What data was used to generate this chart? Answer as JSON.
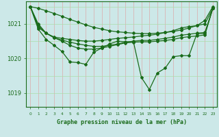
{
  "background_color": "#cce8e8",
  "line_color": "#1a6b1a",
  "grid_color_v": "#ddaaaa",
  "grid_color_h": "#aaddaa",
  "xlabel": "Graphe pression niveau de la mer (hPa)",
  "yticks": [
    1019,
    1020,
    1021
  ],
  "ylim": [
    1018.6,
    1021.65
  ],
  "xlim": [
    -0.5,
    23.5
  ],
  "series": [
    [
      1021.5,
      1021.0,
      1020.73,
      1020.62,
      1020.58,
      1020.55,
      1020.52,
      1020.5,
      1020.5,
      1020.52,
      1020.55,
      1020.58,
      1020.6,
      1020.62,
      1020.65,
      1020.67,
      1020.7,
      1020.75,
      1020.8,
      1020.88,
      1020.92,
      1020.95,
      1021.0,
      1021.45
    ],
    [
      1021.5,
      1020.95,
      1020.73,
      1020.6,
      1020.53,
      1020.47,
      1020.42,
      1020.38,
      1020.35,
      1020.35,
      1020.38,
      1020.42,
      1020.47,
      1020.5,
      1020.52,
      1020.52,
      1020.55,
      1020.58,
      1020.62,
      1020.67,
      1020.7,
      1020.73,
      1020.75,
      1021.45
    ],
    [
      1021.5,
      1020.9,
      1020.73,
      1020.6,
      1020.5,
      1020.38,
      1020.3,
      1020.27,
      1020.27,
      1020.3,
      1020.35,
      1020.4,
      1020.45,
      1020.47,
      1020.48,
      1020.48,
      1020.5,
      1020.52,
      1020.55,
      1020.6,
      1020.63,
      1020.65,
      1020.68,
      1021.45
    ],
    [
      1021.5,
      1020.85,
      1020.55,
      1020.38,
      1020.2,
      1019.9,
      1019.88,
      1019.83,
      1020.18,
      1020.3,
      1020.42,
      1020.5,
      1020.48,
      1020.48,
      1019.45,
      1019.1,
      1019.58,
      1019.72,
      1020.05,
      1020.08,
      1020.08,
      1020.72,
      1020.72,
      1021.45
    ],
    [
      1021.5,
      1021.45,
      1021.38,
      1021.3,
      1021.22,
      1021.13,
      1021.05,
      1020.97,
      1020.9,
      1020.85,
      1020.8,
      1020.77,
      1020.75,
      1020.73,
      1020.72,
      1020.72,
      1020.73,
      1020.75,
      1020.78,
      1020.82,
      1020.88,
      1020.95,
      1021.1,
      1021.5
    ]
  ],
  "marker": "D",
  "marker_size": 2.0,
  "linewidth": 0.9
}
